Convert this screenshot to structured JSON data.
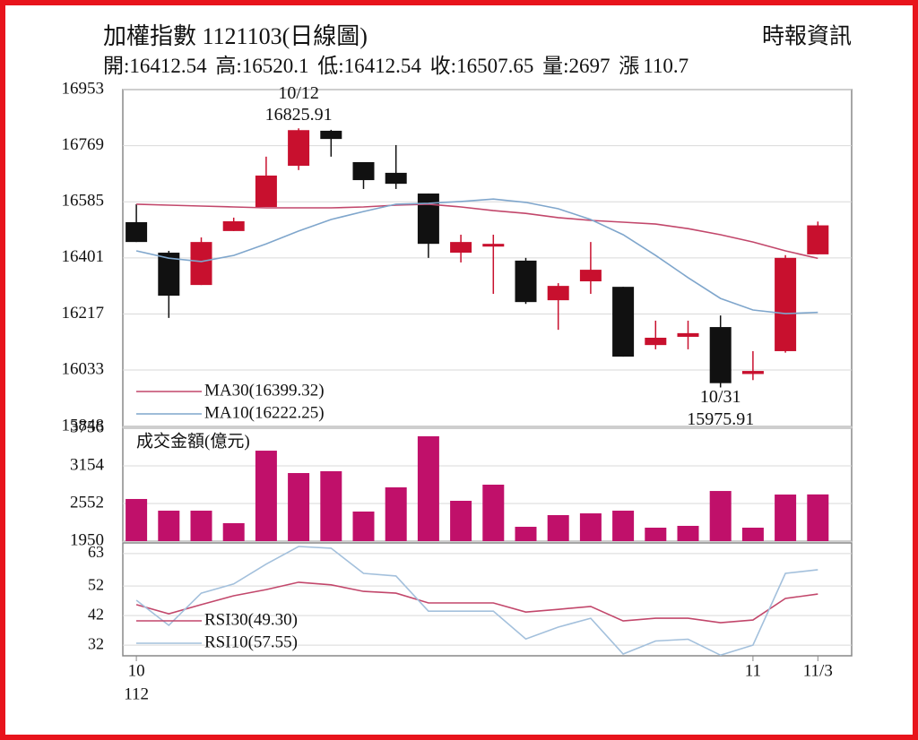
{
  "chart_data": [
    {
      "type": "candlestick",
      "title": "加權指數 1121103(日線圖)",
      "source": "時報資訊",
      "info_labels": [
        "開:",
        "高:",
        "低:",
        "收:",
        "量:",
        "漲"
      ],
      "change": 110.7,
      "open": [
        16518,
        16418,
        16312,
        16489,
        16568,
        16703,
        16818,
        16715,
        16680,
        16612,
        16418,
        16438,
        16392,
        16262,
        16324,
        16306,
        16115,
        16142,
        16174,
        16020,
        16095,
        16412.54
      ],
      "high": [
        16577,
        16424,
        16468,
        16533,
        16733,
        16825.91,
        16821,
        16715,
        16771,
        16612,
        16477,
        16477,
        16401,
        16318,
        16453,
        16306,
        16195,
        16195,
        16212,
        16095,
        16410,
        16520.1
      ],
      "low": [
        16453,
        16204,
        16312,
        16489,
        16568,
        16689,
        16733,
        16627,
        16627,
        16401,
        16386,
        16283,
        16250,
        16165,
        16283,
        16077,
        16101,
        16101,
        15975.91,
        16000,
        16090,
        16412.54
      ],
      "close": [
        16453,
        16277,
        16453,
        16521,
        16671,
        16820,
        16791,
        16656,
        16644,
        16447,
        16453,
        16447,
        16256,
        16309,
        16362,
        16077,
        16139,
        16154,
        15990,
        16030,
        16401,
        16507.65
      ],
      "up_color": "#c8102e",
      "down_color": "#111111",
      "series": [
        {
          "name": "MA30(16399.32)",
          "color": "#c2476b",
          "values": [
            16577,
            16574,
            16571,
            16568,
            16565,
            16565,
            16565,
            16568,
            16574,
            16577,
            16568,
            16556,
            16547,
            16533,
            16524,
            16518,
            16512,
            16497,
            16477,
            16453,
            16424,
            16399.32
          ]
        },
        {
          "name": "MA10(16222.25)",
          "color": "#7fa6cc",
          "values": [
            16424,
            16400,
            16389,
            16409,
            16447,
            16489,
            16527,
            16553,
            16577,
            16580,
            16586,
            16594,
            16583,
            16562,
            16527,
            16477,
            16409,
            16336,
            16268,
            16230,
            16218,
            16222.25
          ]
        }
      ],
      "annotations": [
        {
          "label": "10/12",
          "value": 16825.91
        },
        {
          "label": "10/31",
          "value": 15975.91
        }
      ],
      "ylim": [
        15848,
        16953
      ],
      "yticks": [
        16953,
        16769,
        16585,
        16401,
        16217,
        16033,
        15848
      ],
      "grid": true
    },
    {
      "type": "bar",
      "panel_label": "成交金額(億元)",
      "color": "#c0106a",
      "values": [
        2624,
        2437,
        2437,
        2237,
        3397,
        3039,
        3068,
        2423,
        2810,
        3627,
        2595,
        2853,
        2179,
        2366,
        2394,
        2437,
        2165,
        2194,
        2752,
        2165,
        2695,
        2697
      ],
      "ylim": [
        1950,
        3756
      ],
      "yticks": [
        3756,
        3154,
        2552,
        1950
      ],
      "grid": true
    },
    {
      "type": "line",
      "categories": [
        "10",
        null,
        null,
        null,
        null,
        null,
        null,
        null,
        null,
        null,
        null,
        null,
        null,
        null,
        null,
        null,
        null,
        null,
        null,
        "11",
        null,
        "11/3"
      ],
      "x_sublabel": "112",
      "series": [
        {
          "name": "RSI30(49.30)",
          "color": "#c2476b",
          "values": [
            45.7,
            42.6,
            45.7,
            48.7,
            50.8,
            53.3,
            52.4,
            50.2,
            49.6,
            46.3,
            46.3,
            46.3,
            43.2,
            44.1,
            45.1,
            40.2,
            41.1,
            41.1,
            39.6,
            40.5,
            47.8,
            49.3
          ]
        },
        {
          "name": "RSI10(57.55)",
          "color": "#a3c0dc",
          "values": [
            47.2,
            38.7,
            49.6,
            52.7,
            59.4,
            65.4,
            64.8,
            56.3,
            55.4,
            43.5,
            43.5,
            43.5,
            34.1,
            38.1,
            41.1,
            29.0,
            33.4,
            34.0,
            28.6,
            32.0,
            56.3,
            57.55
          ]
        }
      ],
      "ylim": [
        28.4,
        66.6
      ],
      "yticks": [
        63,
        52,
        42,
        32
      ],
      "grid": true
    }
  ]
}
